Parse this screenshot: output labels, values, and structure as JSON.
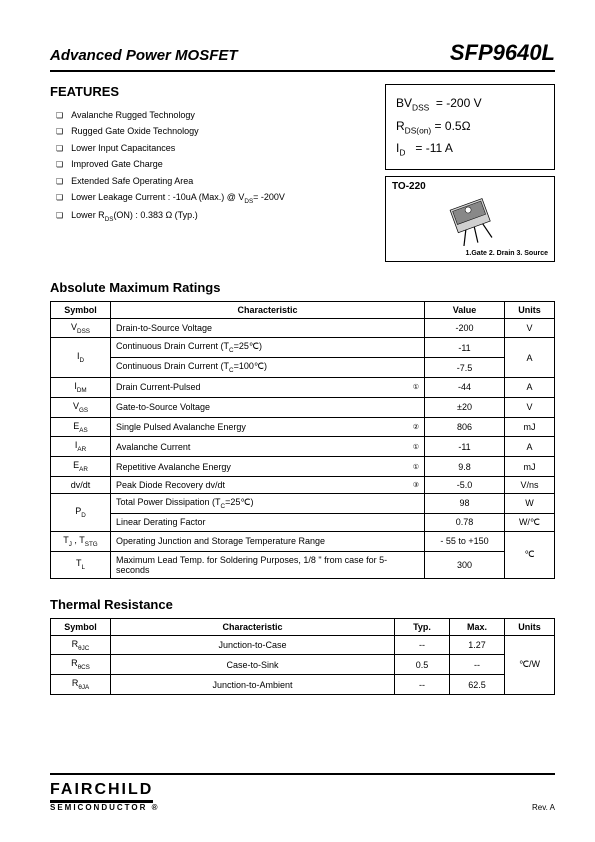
{
  "header": {
    "left": "Advanced Power MOSFET",
    "right": "SFP9640L"
  },
  "features": {
    "title": "FEATURES",
    "items": [
      "Avalanche Rugged Technology",
      "Rugged Gate Oxide Technology",
      "Lower Input Capacitances",
      "Improved Gate Charge",
      "Extended Safe Operating Area",
      "Lower Leakage Current : -10uA (Max.) @ V_DS= -200V",
      "Lower R_DS(ON) : 0.383 Ω (Typ.)"
    ]
  },
  "specbox": {
    "bvdss_label": "BV_DSS",
    "bvdss_val": "= -200 V",
    "rdson_label": "R_DS(on)",
    "rdson_val": "= 0.5Ω",
    "id_label": "I_D",
    "id_val": "= -11 A"
  },
  "package": {
    "label": "TO-220",
    "caption": "1.Gate  2. Drain  3. Source"
  },
  "abs_max": {
    "title": "Absolute Maximum Ratings",
    "headers": [
      "Symbol",
      "Characteristic",
      "Value",
      "Units"
    ],
    "rows": [
      {
        "sym": "V_DSS",
        "char": "Drain-to-Source Voltage",
        "note": "",
        "val": "-200",
        "unit": "V",
        "rs": 1,
        "ru": 1
      },
      {
        "sym": "I_D",
        "char": "Continuous Drain Current (T_C=25℃)",
        "note": "",
        "val": "-11",
        "unit": "A",
        "rs": 2,
        "ru": 2
      },
      {
        "sym": "",
        "char": "Continuous Drain Current (T_C=100℃)",
        "note": "",
        "val": "-7.5",
        "unit": "",
        "rs": 0,
        "ru": 0
      },
      {
        "sym": "I_DM",
        "char": "Drain Current-Pulsed",
        "note": "①",
        "val": "-44",
        "unit": "A",
        "rs": 1,
        "ru": 1
      },
      {
        "sym": "V_GS",
        "char": "Gate-to-Source Voltage",
        "note": "",
        "val": "±20",
        "unit": "V",
        "rs": 1,
        "ru": 1
      },
      {
        "sym": "E_AS",
        "char": "Single Pulsed Avalanche Energy",
        "note": "②",
        "val": "806",
        "unit": "mJ",
        "rs": 1,
        "ru": 1
      },
      {
        "sym": "I_AR",
        "char": "Avalanche Current",
        "note": "①",
        "val": "-11",
        "unit": "A",
        "rs": 1,
        "ru": 1
      },
      {
        "sym": "E_AR",
        "char": "Repetitive Avalanche Energy",
        "note": "①",
        "val": "9.8",
        "unit": "mJ",
        "rs": 1,
        "ru": 1
      },
      {
        "sym": "dv/dt",
        "char": "Peak Diode Recovery dv/dt",
        "note": "③",
        "val": "-5.0",
        "unit": "V/ns",
        "rs": 1,
        "ru": 1
      },
      {
        "sym": "P_D",
        "char": "Total Power Dissipation (T_C=25℃)",
        "note": "",
        "val": "98",
        "unit": "W",
        "rs": 2,
        "ru": 1
      },
      {
        "sym": "",
        "char": "Linear Derating Factor",
        "note": "",
        "val": "0.78",
        "unit": "W/℃",
        "rs": 0,
        "ru": 1
      },
      {
        "sym": "T_J , T_STG",
        "char": "Operating Junction and Storage Temperature Range",
        "note": "",
        "val": "- 55 to +150",
        "unit": "℃",
        "rs": 1,
        "ru": 2
      },
      {
        "sym": "T_L",
        "char": "Maximum Lead Temp. for Soldering Purposes, 1/8 \" from case for 5-seconds",
        "note": "",
        "val": "300",
        "unit": "",
        "rs": 1,
        "ru": 0
      }
    ]
  },
  "thermal": {
    "title": "Thermal Resistance",
    "headers": [
      "Symbol",
      "Characteristic",
      "Typ.",
      "Max.",
      "Units"
    ],
    "rows": [
      {
        "sym": "R_θJC",
        "char": "Junction-to-Case",
        "typ": "--",
        "max": "1.27"
      },
      {
        "sym": "R_θCS",
        "char": "Case-to-Sink",
        "typ": "0.5",
        "max": "--"
      },
      {
        "sym": "R_θJA",
        "char": "Junction-to-Ambient",
        "typ": "--",
        "max": "62.5"
      }
    ],
    "unit": "℃/W"
  },
  "footer": {
    "logo_main": "FAIRCHILD",
    "logo_sub": "SEMICONDUCTOR ®",
    "rev": "Rev. A"
  },
  "style": {
    "col_widths_abs": [
      "60px",
      "auto",
      "14px",
      "80px",
      "50px"
    ],
    "col_widths_therm": [
      "60px",
      "auto",
      "55px",
      "55px",
      "50px"
    ]
  }
}
